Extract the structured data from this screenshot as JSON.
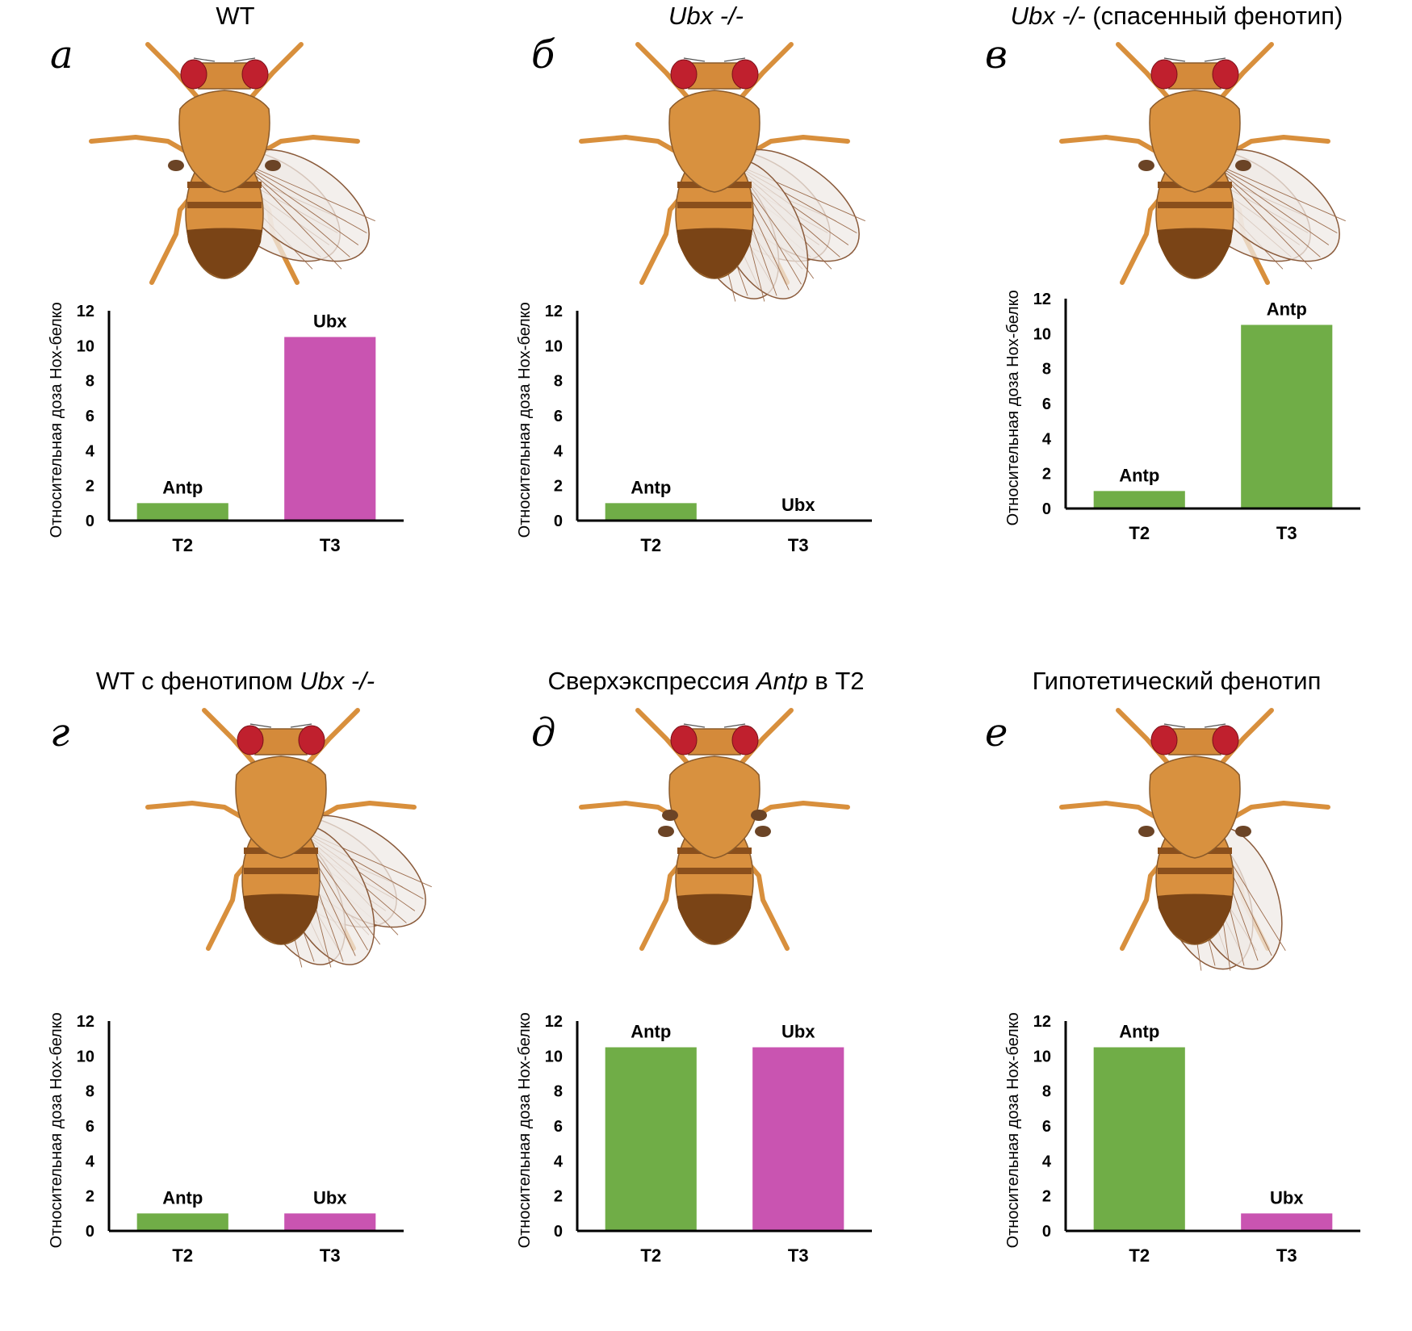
{
  "figure": {
    "colors": {
      "antp": "#70ad47",
      "ubx": "#c954b1",
      "eye": "#c0202e",
      "body": "#d9903f",
      "abdomen_dark": "#7a4416"
    }
  },
  "panels": [
    {
      "id": "a",
      "letter": "а",
      "title_parts": [
        {
          "text": "WT",
          "italic": false
        }
      ],
      "fly": {
        "wings": 2,
        "halteres": 1,
        "extra_legs_pair": 0
      }
    },
    {
      "id": "b",
      "letter": "б",
      "title_parts": [
        {
          "text": "Ubx -/-",
          "italic": true
        }
      ],
      "fly": {
        "wings": 4,
        "halteres": 0
      }
    },
    {
      "id": "v",
      "letter": "в",
      "title_parts": [
        {
          "text": "Ubx -/-",
          "italic": true
        },
        {
          "text": " (спасенный фенотип)",
          "italic": false
        }
      ],
      "fly": {
        "wings": 2,
        "halteres": 1
      }
    },
    {
      "id": "g",
      "letter": "г",
      "title_parts": [
        {
          "text": "WT с фенотипом ",
          "italic": false
        },
        {
          "text": "Ubx -/-",
          "italic": true
        }
      ],
      "fly": {
        "wings": 4,
        "halteres": 0
      }
    },
    {
      "id": "d",
      "letter": "д",
      "title_parts": [
        {
          "text": "Сверхэкспрессия ",
          "italic": false
        },
        {
          "text": "Antp",
          "italic": true
        },
        {
          "text": " в Т2",
          "italic": false
        }
      ],
      "fly": {
        "wings": 0,
        "halteres": 2
      }
    },
    {
      "id": "e",
      "letter": "е",
      "title_parts": [
        {
          "text": "Гипотетический фенотип",
          "italic": false
        }
      ],
      "fly": {
        "wings": 2,
        "halteres": 1,
        "wings_on_T3": true
      }
    }
  ],
  "chart_data": [
    {
      "type": "bar",
      "panel": "а",
      "title": "WT",
      "ylabel": "Относительная доза Hox-белков",
      "xlabel": "",
      "categories": [
        "T2",
        "T3"
      ],
      "ylim": [
        0,
        12
      ],
      "yticks": [
        0,
        2,
        4,
        6,
        8,
        10,
        12
      ],
      "grid": false,
      "bars": [
        {
          "category": "T2",
          "label": "Antp",
          "value": 1,
          "color": "#70ad47"
        },
        {
          "category": "T3",
          "label": "Ubx",
          "value": 10.5,
          "color": "#c954b1"
        }
      ]
    },
    {
      "type": "bar",
      "panel": "б",
      "title": "Ubx -/-",
      "ylabel": "Относительная доза Hox-белков",
      "xlabel": "",
      "categories": [
        "T2",
        "T3"
      ],
      "ylim": [
        0,
        12
      ],
      "yticks": [
        0,
        2,
        4,
        6,
        8,
        10,
        12
      ],
      "grid": false,
      "bars": [
        {
          "category": "T2",
          "label": "Antp",
          "value": 1,
          "color": "#70ad47"
        },
        {
          "category": "T3",
          "label": "Ubx",
          "value": 0,
          "color": "#c954b1"
        }
      ]
    },
    {
      "type": "bar",
      "panel": "в",
      "title": "Ubx -/- (спасенный фенотип)",
      "ylabel": "Относительная доза Hox-белков",
      "xlabel": "",
      "categories": [
        "T2",
        "T3"
      ],
      "ylim": [
        0,
        12
      ],
      "yticks": [
        0,
        2,
        4,
        6,
        8,
        10,
        12
      ],
      "grid": false,
      "bars": [
        {
          "category": "T2",
          "label": "Antp",
          "value": 1,
          "color": "#70ad47"
        },
        {
          "category": "T3",
          "label": "Antp",
          "value": 10.5,
          "color": "#70ad47"
        }
      ]
    },
    {
      "type": "bar",
      "panel": "г",
      "title": "WT с фенотипом Ubx -/-",
      "ylabel": "Относительная доза Hox-белков",
      "xlabel": "",
      "categories": [
        "T2",
        "T3"
      ],
      "ylim": [
        0,
        12
      ],
      "yticks": [
        0,
        2,
        4,
        6,
        8,
        10,
        12
      ],
      "grid": false,
      "bars": [
        {
          "category": "T2",
          "label": "Antp",
          "value": 1,
          "color": "#70ad47"
        },
        {
          "category": "T3",
          "label": "Ubx",
          "value": 1,
          "color": "#c954b1"
        }
      ]
    },
    {
      "type": "bar",
      "panel": "д",
      "title": "Сверхэкспрессия Antp в Т2",
      "ylabel": "Относительная доза Hox-белков",
      "xlabel": "",
      "categories": [
        "T2",
        "T3"
      ],
      "ylim": [
        0,
        12
      ],
      "yticks": [
        0,
        2,
        4,
        6,
        8,
        10,
        12
      ],
      "grid": false,
      "bars": [
        {
          "category": "T2",
          "label": "Antp",
          "value": 10.5,
          "color": "#70ad47"
        },
        {
          "category": "T3",
          "label": "Ubx",
          "value": 10.5,
          "color": "#c954b1"
        }
      ]
    },
    {
      "type": "bar",
      "panel": "е",
      "title": "Гипотетический фенотип",
      "ylabel": "Относительная доза Hox-белков",
      "xlabel": "",
      "categories": [
        "T2",
        "T3"
      ],
      "ylim": [
        0,
        12
      ],
      "yticks": [
        0,
        2,
        4,
        6,
        8,
        10,
        12
      ],
      "grid": false,
      "bars": [
        {
          "category": "T2",
          "label": "Antp",
          "value": 10.5,
          "color": "#70ad47"
        },
        {
          "category": "T3",
          "label": "Ubx",
          "value": 1,
          "color": "#c954b1"
        }
      ]
    }
  ]
}
